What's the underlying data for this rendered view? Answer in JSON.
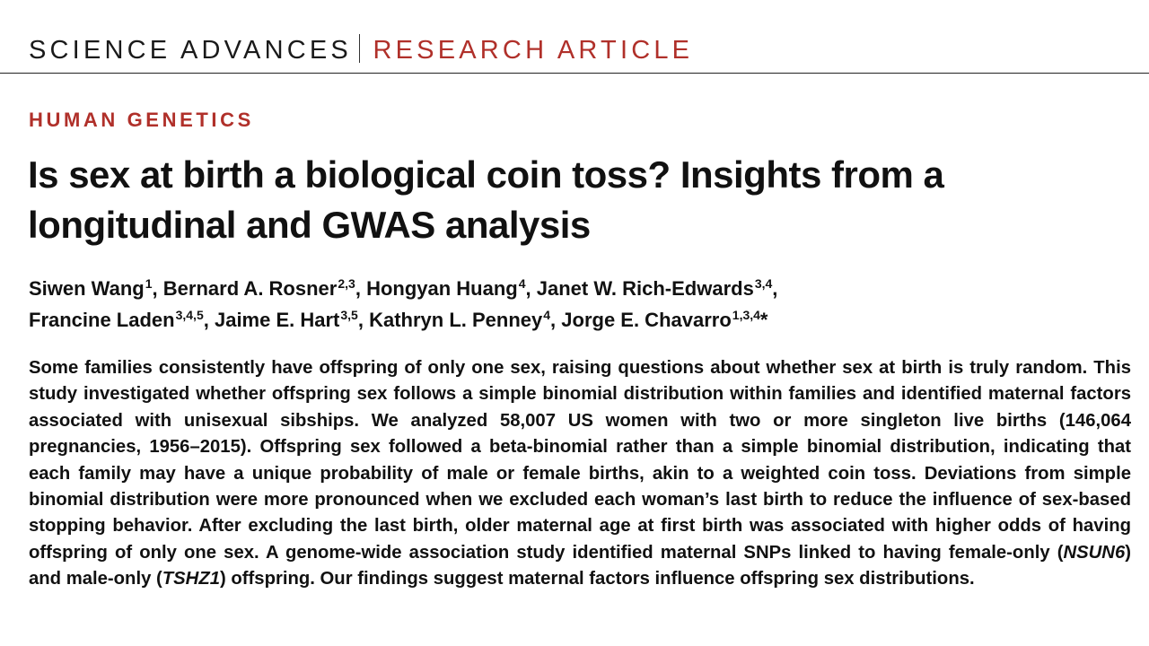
{
  "header": {
    "journal": "SCIENCE ADVANCES",
    "article_type": "RESEARCH ARTICLE"
  },
  "section": "HUMAN GENETICS",
  "title": "Is sex at birth a biological coin toss? Insights from a longitudinal and GWAS analysis",
  "authors": [
    {
      "name": "Siwen Wang",
      "aff": "1"
    },
    {
      "name": "Bernard A. Rosner",
      "aff": "2,3"
    },
    {
      "name": "Hongyan Huang",
      "aff": "4"
    },
    {
      "name": "Janet W. Rich-Edwards",
      "aff": "3,4"
    },
    {
      "name": "Francine Laden",
      "aff": "3,4,5"
    },
    {
      "name": "Jaime E. Hart",
      "aff": "3,5"
    },
    {
      "name": "Kathryn L. Penney",
      "aff": "4"
    },
    {
      "name": "Jorge E. Chavarro",
      "aff": "1,3,4",
      "marker": "*"
    }
  ],
  "abstract": {
    "part1": "Some families consistently have offspring of only one sex, raising questions about whether sex at birth is truly random. This study investigated whether offspring sex follows a simple binomial distribution within families and identified maternal factors associated with unisexual sibships. We analyzed 58,007 US women with two or more singleton live births (146,064 pregnancies, 1956–2015). Offspring sex followed a beta-binomial rather than a simple binomial distribution, indicating that each family may have a unique probability of male or female births, akin to a weighted coin toss. Deviations from simple binomial distribution were more pronounced when we excluded each woman’s last birth to reduce the influence of sex-based stopping behavior. After excluding the last birth, older maternal age at first birth was associated with higher odds of having offspring of only one sex. A genome-wide association study identified maternal SNPs linked to having female-only (",
    "gene1": "NSUN6",
    "part2": ") and male-only (",
    "gene2": "TSHZ1",
    "part3": ") offspring. Our findings suggest maternal factors influence offspring sex distributions."
  }
}
